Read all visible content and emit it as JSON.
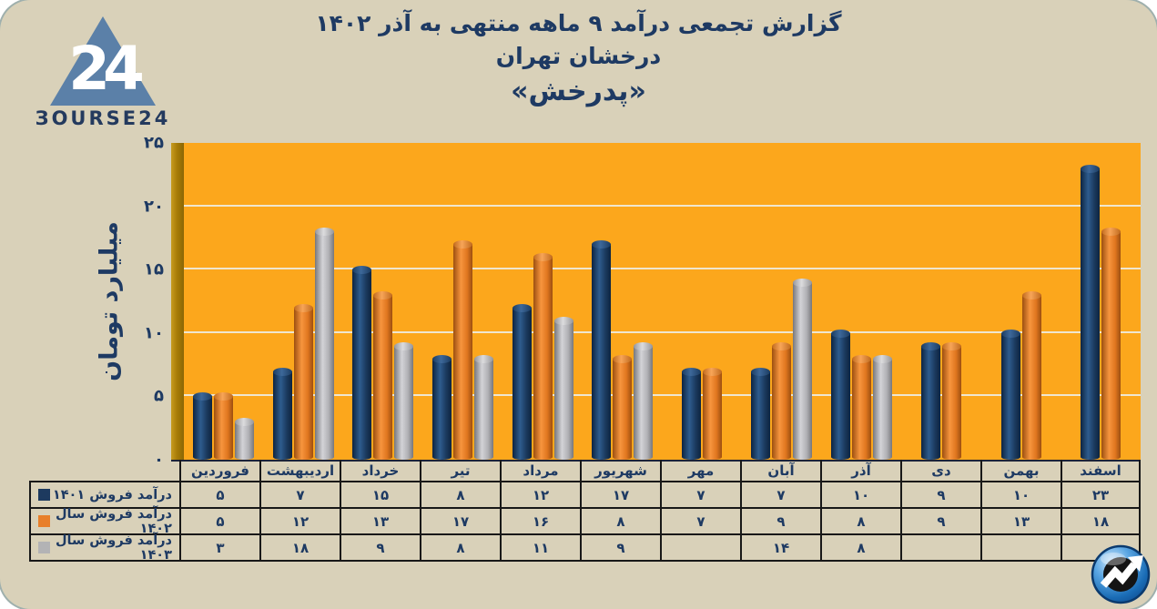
{
  "brand": {
    "logo_text": "ЗOURSE24",
    "logo_number": "24",
    "logo_triangle_color": "#5b80a8",
    "corner_icon": "trend-arrow-icon"
  },
  "header": {
    "line1": "گزارش تجمعی درآمد ۹ ماهه منتهی به آذر ۱۴۰۲",
    "line2": "درخشان تهران",
    "line3": "«پدرخش»"
  },
  "chart_data": {
    "type": "bar",
    "title": "گزارش تجمعی درآمد ۹ ماهه منتهی به آذر ۱۴۰۲ - درخشان تهران «پدرخش»",
    "xlabel": "",
    "ylabel": "میلیارد تومان",
    "ylim": [
      0,
      25
    ],
    "grid": true,
    "plot_bg": "#fca71c",
    "legend_position": "table-left",
    "yticks": [
      {
        "value": 0,
        "label": "۰"
      },
      {
        "value": 5,
        "label": "۵"
      },
      {
        "value": 10,
        "label": "۱۰"
      },
      {
        "value": 15,
        "label": "۱۵"
      },
      {
        "value": 20,
        "label": "۲۰"
      },
      {
        "value": 25,
        "label": "۲۵"
      }
    ],
    "categories": [
      "فروردین",
      "اردیبهشت",
      "خرداد",
      "تیر",
      "مرداد",
      "شهریور",
      "مهر",
      "آبان",
      "آذر",
      "دی",
      "بهمن",
      "اسفند"
    ],
    "series": [
      {
        "name": "درآمد فروش ۱۴۰۱",
        "color": "#1d3a5f",
        "values": [
          5,
          7,
          15,
          8,
          12,
          17,
          7,
          7,
          10,
          9,
          10,
          23
        ],
        "labels": [
          "۵",
          "۷",
          "۱۵",
          "۸",
          "۱۲",
          "۱۷",
          "۷",
          "۷",
          "۱۰",
          "۹",
          "۱۰",
          "۲۳"
        ]
      },
      {
        "name": "درآمد فروش سال ۱۴۰۲",
        "color": "#e87f2a",
        "values": [
          5,
          12,
          13,
          17,
          16,
          8,
          7,
          9,
          8,
          9,
          13,
          18
        ],
        "labels": [
          "۵",
          "۱۲",
          "۱۳",
          "۱۷",
          "۱۶",
          "۸",
          "۷",
          "۹",
          "۸",
          "۹",
          "۱۳",
          "۱۸"
        ]
      },
      {
        "name": "درآمد فروش سال ۱۴۰۳",
        "color": "#b3b3b5",
        "values": [
          3,
          18,
          9,
          8,
          11,
          9,
          null,
          14,
          8,
          null,
          null,
          null
        ],
        "labels": [
          "۳",
          "۱۸",
          "۹",
          "۸",
          "۱۱",
          "۹",
          "",
          "۱۴",
          "۸",
          "",
          "",
          ""
        ]
      }
    ]
  }
}
